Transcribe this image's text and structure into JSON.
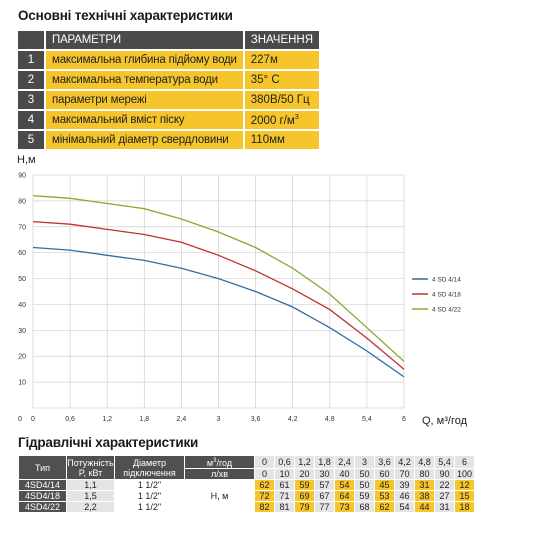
{
  "title_main": "Основні технічні характеристики",
  "spec_table": {
    "header": {
      "col1": "",
      "col2": "ПАРАМЕТРИ",
      "col3": "ЗНАЧЕННЯ"
    },
    "rows": [
      {
        "num": "1",
        "name": "максимальна глибина підйому води",
        "value": "227м"
      },
      {
        "num": "2",
        "name": "максимальна температура води",
        "value": "35° С"
      },
      {
        "num": "3",
        "name": "параметри мережі",
        "value": "380В/50 Гц"
      },
      {
        "num": "4",
        "name": "максимальний вміст піску",
        "value": "2000 г/м",
        "value_sup": "3"
      },
      {
        "num": "5",
        "name": "мінімальний діаметр свердловини",
        "value": "110мм"
      }
    ]
  },
  "chart_data": {
    "type": "line",
    "ylabel": "H,м",
    "xlabel": "Q, м³/год",
    "xlim": [
      0,
      6
    ],
    "ylim": [
      0,
      90
    ],
    "xticks": [
      "0",
      "0,6",
      "1,2",
      "1,8",
      "2,4",
      "3",
      "3,6",
      "4,2",
      "4,8",
      "5,4",
      "6"
    ],
    "yticks": [
      "0",
      "10",
      "20",
      "30",
      "40",
      "50",
      "60",
      "70",
      "80",
      "90"
    ],
    "grid": true,
    "legend_position": "right",
    "x": [
      0,
      0.6,
      1.2,
      1.8,
      2.4,
      3,
      3.6,
      4.2,
      4.8,
      5.4,
      6
    ],
    "series": [
      {
        "name": "4 SD 4/14",
        "color": "#2f6ea6",
        "values": [
          62,
          61,
          59,
          57,
          54,
          50,
          45,
          39,
          31,
          22,
          12
        ]
      },
      {
        "name": "4 SD 4/18",
        "color": "#c0302c",
        "values": [
          72,
          71,
          69,
          67,
          64,
          59,
          53,
          46,
          38,
          27,
          15
        ]
      },
      {
        "name": "4 SD 4/22",
        "color": "#8aaa2e",
        "values": [
          82,
          81,
          79,
          77,
          73,
          68,
          62,
          54,
          44,
          31,
          18
        ]
      }
    ]
  },
  "title_hydraulic": "Гідравлічні характеристики",
  "hyd_table": {
    "col_type": "Тип",
    "col_power_1": "Потужність",
    "col_power_2": "P, кВт",
    "col_diam_1": "Діаметр",
    "col_diam_2": "підключення",
    "unit_m3": "м",
    "unit_m3_sup": "3",
    "unit_m3_suffix": "/год",
    "unit_lmin": "л/хв",
    "h_label": "Н, м",
    "q_m3": [
      "0",
      "0,6",
      "1,2",
      "1,8",
      "2,4",
      "3",
      "3,6",
      "4,2",
      "4,8",
      "5,4",
      "6"
    ],
    "q_l": [
      "0",
      "10",
      "20",
      "30",
      "40",
      "50",
      "60",
      "70",
      "80",
      "90",
      "100"
    ],
    "rows": [
      {
        "type": "4SD4/14",
        "power": "1,1",
        "diam": "1 1/2\"",
        "h": [
          "62",
          "61",
          "59",
          "57",
          "54",
          "50",
          "45",
          "39",
          "31",
          "22",
          "12"
        ]
      },
      {
        "type": "4SD4/18",
        "power": "1,5",
        "diam": "1 1/2\"",
        "h": [
          "72",
          "71",
          "69",
          "67",
          "64",
          "59",
          "53",
          "46",
          "38",
          "27",
          "15"
        ]
      },
      {
        "type": "4SD4/22",
        "power": "2,2",
        "diam": "1 1/2\"",
        "h": [
          "82",
          "81",
          "79",
          "77",
          "73",
          "68",
          "62",
          "54",
          "44",
          "31",
          "18"
        ]
      }
    ]
  }
}
